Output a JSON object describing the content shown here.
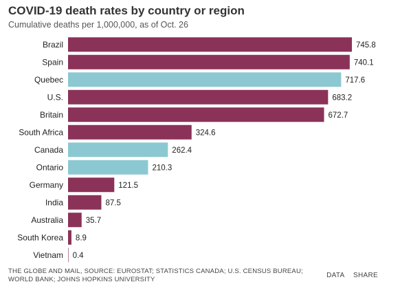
{
  "chart_data": {
    "type": "bar",
    "orientation": "horizontal",
    "title": "COVID-19 death rates by country or region",
    "subtitle": "Cumulative deaths per 1,000,000, as of Oct. 26",
    "categories": [
      "Brazil",
      "Spain",
      "Quebec",
      "U.S.",
      "Britain",
      "South Africa",
      "Canada",
      "Ontario",
      "Germany",
      "India",
      "Australia",
      "South Korea",
      "Vietnam"
    ],
    "values": [
      745.8,
      740.1,
      717.6,
      683.2,
      672.7,
      324.6,
      262.4,
      210.3,
      121.5,
      87.5,
      35.7,
      8.9,
      0.4
    ],
    "value_labels": [
      "745.8",
      "740.1",
      "717.6",
      "683.2",
      "672.7",
      "324.6",
      "262.4",
      "210.3",
      "121.5",
      "87.5",
      "35.7",
      "8.9",
      "0.4"
    ],
    "highlight": [
      false,
      false,
      true,
      false,
      false,
      false,
      true,
      true,
      false,
      false,
      false,
      false,
      false
    ],
    "colors": {
      "default": "#8b3259",
      "highlight": "#8cc8d2"
    },
    "xlim": [
      0,
      745.8
    ],
    "grid": false,
    "legend": "none"
  },
  "footer": {
    "source": "THE GLOBE AND MAIL, SOURCE: EUROSTAT; STATISTICS CANADA; U.S. CENSUS BUREAU; WORLD BANK; JOHNS HOPKINS UNIVERSITY",
    "data_label": "DATA",
    "share_label": "SHARE"
  }
}
